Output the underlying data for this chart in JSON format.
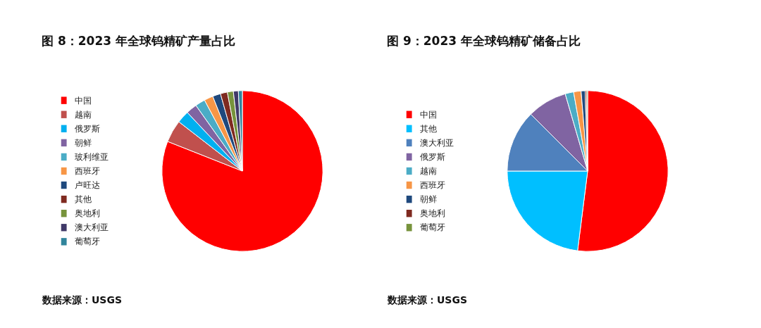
{
  "chart_data": [
    {
      "type": "pie",
      "title": "图 8：2023 年全球钨精矿产量占比",
      "legend": "left",
      "annotations": [
        "数据来源：USGS"
      ],
      "categories": [
        "中国",
        "越南",
        "俄罗斯",
        "朝鲜",
        "玻利维亚",
        "西班牙",
        "卢旺达",
        "其他",
        "奥地利",
        "澳大利亚",
        "葡萄牙"
      ],
      "values": [
        81,
        4.5,
        2.5,
        2.2,
        2,
        1.8,
        1.6,
        1.4,
        1.2,
        1,
        0.8
      ],
      "colors": [
        "#ff0000",
        "#c0504d",
        "#00b0f0",
        "#8064a2",
        "#4bacc6",
        "#f79646",
        "#1f497d",
        "#7f2a20",
        "#77933c",
        "#403968",
        "#31859c"
      ]
    },
    {
      "type": "pie",
      "title": "图 9：2023 年全球钨精矿储备占比",
      "legend": "left",
      "annotations": [
        "数据来源：USGS"
      ],
      "categories": [
        "中国",
        "其他",
        "澳大利亚",
        "俄罗斯",
        "越南",
        "西班牙",
        "朝鲜",
        "奥地利",
        "葡萄牙"
      ],
      "values": [
        52,
        23,
        12.5,
        8,
        1.7,
        1.5,
        0.8,
        0.3,
        0.2
      ],
      "colors": [
        "#ff0000",
        "#00bfff",
        "#4f81bd",
        "#8064a2",
        "#4bacc6",
        "#f79646",
        "#1f497d",
        "#7f2a20",
        "#77933c"
      ]
    }
  ]
}
